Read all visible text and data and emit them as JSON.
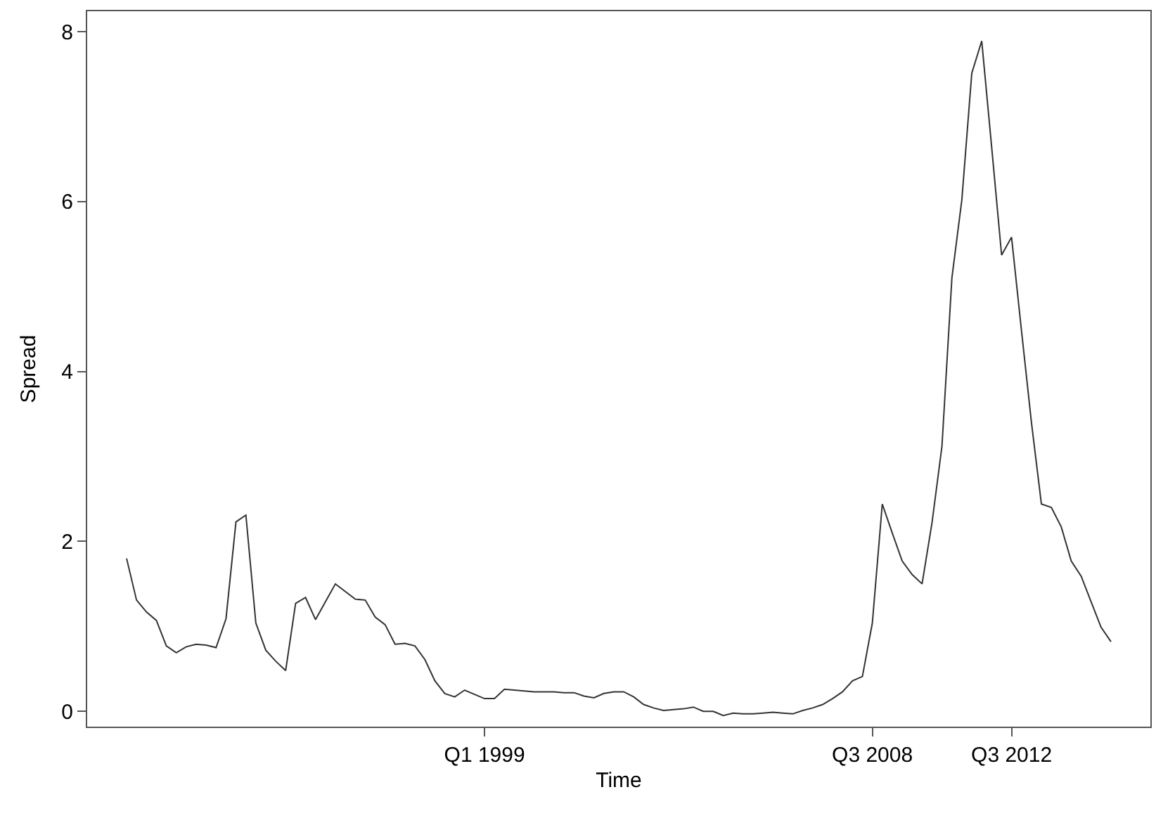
{
  "chart_data": {
    "type": "line",
    "xlabel": "Time",
    "ylabel": "Spread",
    "categories": [
      null,
      null,
      null,
      null,
      null,
      null,
      null,
      null,
      null,
      null,
      null,
      null,
      null,
      null,
      null,
      null,
      null,
      null,
      null,
      null,
      null,
      null,
      null,
      null,
      null,
      null,
      null,
      null,
      null,
      null,
      null,
      null,
      null,
      null,
      null,
      null,
      "Q1 1999",
      null,
      null,
      null,
      null,
      null,
      null,
      null,
      null,
      null,
      null,
      null,
      null,
      null,
      null,
      null,
      null,
      null,
      null,
      null,
      null,
      null,
      null,
      null,
      null,
      null,
      null,
      null,
      null,
      null,
      null,
      null,
      null,
      null,
      null,
      null,
      null,
      null,
      null,
      "Q3 2008",
      null,
      null,
      null,
      null,
      null,
      null,
      null,
      null,
      null,
      null,
      null,
      null,
      null,
      "Q3 2012",
      null,
      null,
      null,
      null,
      null,
      null,
      null,
      null,
      null,
      null
    ],
    "series": [
      {
        "color": "#333333",
        "values": [
          1.8,
          1.31,
          1.17,
          1.07,
          0.77,
          0.69,
          0.76,
          0.79,
          0.78,
          0.75,
          1.09,
          2.23,
          2.31,
          1.04,
          0.72,
          0.59,
          0.48,
          1.27,
          1.34,
          1.08,
          1.29,
          1.5,
          1.41,
          1.32,
          1.31,
          1.11,
          1.02,
          0.79,
          0.8,
          0.77,
          0.61,
          0.36,
          0.21,
          0.17,
          0.25,
          0.2,
          0.15,
          0.15,
          0.26,
          0.25,
          0.24,
          0.23,
          0.23,
          0.23,
          0.22,
          0.22,
          0.18,
          0.16,
          0.21,
          0.23,
          0.23,
          0.17,
          0.08,
          0.04,
          0.01,
          0.02,
          0.03,
          0.05,
          0.0,
          0.0,
          -0.05,
          -0.02,
          -0.03,
          -0.03,
          -0.02,
          -0.01,
          -0.02,
          -0.03,
          0.01,
          0.04,
          0.08,
          0.15,
          0.23,
          0.36,
          0.41,
          1.04,
          2.44,
          2.1,
          1.77,
          1.61,
          1.5,
          2.22,
          3.12,
          5.1,
          6.02,
          7.51,
          7.89,
          6.64,
          5.37,
          5.58,
          4.48,
          3.4,
          2.44,
          2.4,
          2.17,
          1.77,
          1.59,
          1.29,
          0.99,
          0.82
        ]
      }
    ],
    "ylim": [
      -0.18,
      8.24
    ],
    "yticks": [
      0,
      2,
      4,
      6,
      8
    ],
    "marker": "none",
    "line_style": "solid"
  }
}
